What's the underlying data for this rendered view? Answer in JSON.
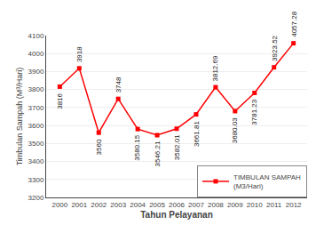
{
  "chart_data": {
    "type": "line",
    "xlabel": "Tahun Pelayanan",
    "ylabel": "Timbulan Sampah (M³/Hari)",
    "x": [
      2000,
      2001,
      2002,
      2003,
      2004,
      2005,
      2006,
      2007,
      2008,
      2009,
      2010,
      2011,
      2012
    ],
    "series": [
      {
        "name": "TIMBULAN SAMPAH\n(M3/Hari)",
        "color": "#FF0000",
        "marker": "square",
        "values": [
          3816,
          3918,
          3560,
          3748,
          3580.15,
          3546.21,
          3582.01,
          3661.81,
          3812.69,
          3680.03,
          3781.23,
          3923.52,
          4057.28
        ]
      }
    ],
    "xlim": [
      1999.3,
      2012.7
    ],
    "xticks": [
      2000,
      2001,
      2002,
      2003,
      2004,
      2005,
      2006,
      2007,
      2008,
      2009,
      2010,
      2011,
      2012
    ],
    "ylim": [
      3200,
      4100
    ],
    "yticks": [
      3200,
      3300,
      3400,
      3500,
      3600,
      3700,
      3800,
      3900,
      4000,
      4100
    ],
    "grid": "y",
    "legend": "lower right",
    "data_labels": true
  }
}
